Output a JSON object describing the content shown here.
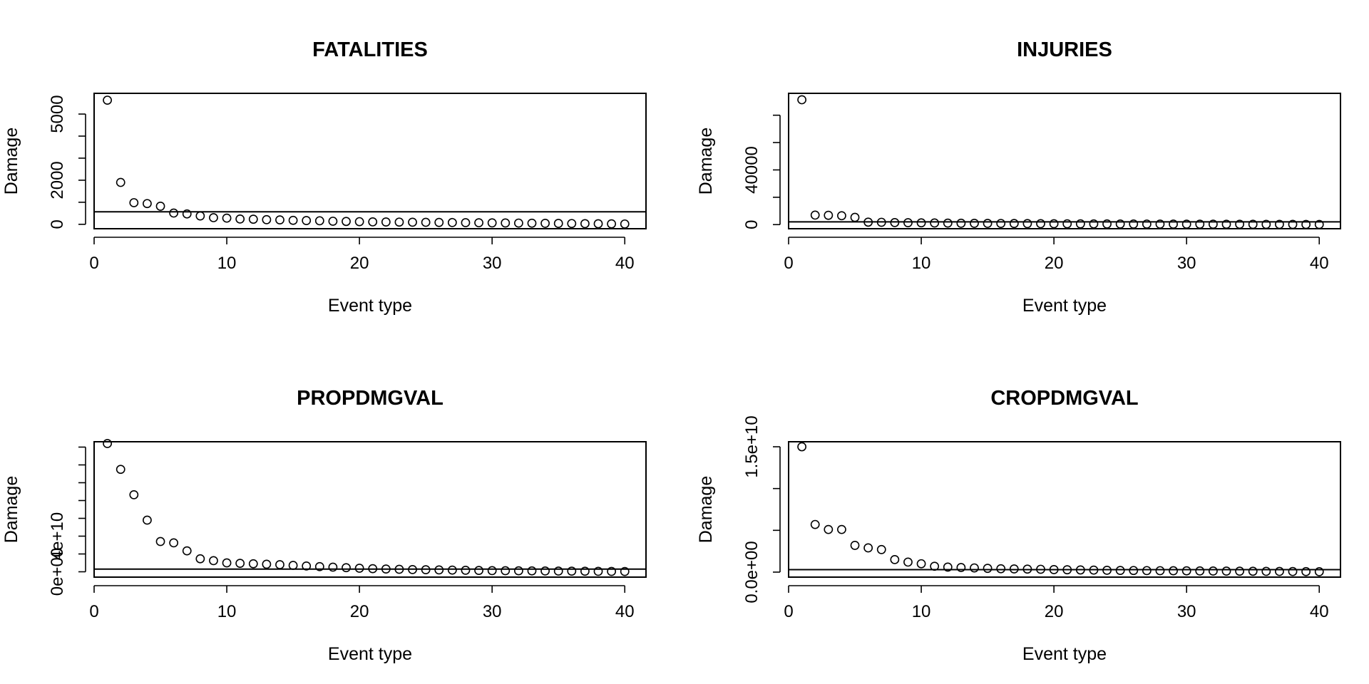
{
  "chart_data": [
    {
      "type": "scatter",
      "title": "FATALITIES",
      "xlabel": "Event type",
      "ylabel": "Damage",
      "xlim": [
        0,
        41.6
      ],
      "ylim": [
        -200,
        5940
      ],
      "xticks": [
        0,
        10,
        20,
        30,
        40
      ],
      "xtick_labels": [
        "0",
        "10",
        "20",
        "30",
        "40"
      ],
      "yticks": [
        0,
        1000,
        2000,
        3000,
        4000,
        5000
      ],
      "ytick_labels": [
        "0",
        "",
        "2000",
        "",
        "",
        "5000"
      ],
      "hline": 566,
      "x": [
        1,
        2,
        3,
        4,
        5,
        6,
        7,
        8,
        9,
        10,
        11,
        12,
        13,
        14,
        15,
        16,
        17,
        18,
        19,
        20,
        21,
        22,
        23,
        24,
        25,
        26,
        27,
        28,
        29,
        30,
        31,
        32,
        33,
        34,
        35,
        36,
        37,
        38,
        39,
        40
      ],
      "values": [
        5630,
        1900,
        980,
        940,
        820,
        510,
        470,
        380,
        300,
        280,
        240,
        230,
        210,
        200,
        180,
        170,
        160,
        140,
        130,
        120,
        110,
        105,
        100,
        95,
        90,
        85,
        80,
        75,
        70,
        65,
        60,
        55,
        50,
        45,
        40,
        35,
        30,
        25,
        20,
        15
      ]
    },
    {
      "type": "scatter",
      "title": "INJURIES",
      "xlabel": "Event type",
      "ylabel": "Damage",
      "xlim": [
        0,
        41.6
      ],
      "ylim": [
        -3000,
        96000
      ],
      "xticks": [
        0,
        10,
        20,
        30,
        40
      ],
      "xtick_labels": [
        "0",
        "10",
        "20",
        "30",
        "40"
      ],
      "yticks": [
        0,
        20000,
        40000,
        60000,
        80000
      ],
      "ytick_labels": [
        "0",
        "",
        "40000",
        "",
        ""
      ],
      "hline": 2000,
      "x": [
        1,
        2,
        3,
        4,
        5,
        6,
        7,
        8,
        9,
        10,
        11,
        12,
        13,
        14,
        15,
        16,
        17,
        18,
        19,
        20,
        21,
        22,
        23,
        24,
        25,
        26,
        27,
        28,
        29,
        30,
        31,
        32,
        33,
        34,
        35,
        36,
        37,
        38,
        39,
        40
      ],
      "values": [
        91300,
        6950,
        6800,
        6500,
        5300,
        1800,
        1700,
        1500,
        1400,
        1300,
        1200,
        1100,
        1000,
        950,
        900,
        850,
        800,
        750,
        700,
        650,
        600,
        550,
        500,
        480,
        450,
        420,
        400,
        380,
        350,
        320,
        300,
        280,
        260,
        240,
        220,
        200,
        180,
        160,
        140,
        120
      ]
    },
    {
      "type": "scatter",
      "title": "PROPDMGVAL",
      "xlabel": "Event type",
      "ylabel": "Damage",
      "xlim": [
        0,
        41.6
      ],
      "ylim": [
        -6000000000,
        146000000000
      ],
      "xticks": [
        0,
        10,
        20,
        30,
        40
      ],
      "xtick_labels": [
        "0",
        "10",
        "20",
        "30",
        "40"
      ],
      "yticks": [
        0,
        20000000000,
        40000000000,
        60000000000,
        80000000000,
        100000000000,
        120000000000,
        140000000000
      ],
      "ytick_labels": [
        "0e+00",
        "",
        "4e+10",
        "",
        "",
        "",
        "",
        ""
      ],
      "hline": 3000000000,
      "x": [
        1,
        2,
        3,
        4,
        5,
        6,
        7,
        8,
        9,
        10,
        11,
        12,
        13,
        14,
        15,
        16,
        17,
        18,
        19,
        20,
        21,
        22,
        23,
        24,
        25,
        26,
        27,
        28,
        29,
        30,
        31,
        32,
        33,
        34,
        35,
        36,
        37,
        38,
        39,
        40
      ],
      "values": [
        144000000000,
        115000000000,
        86500000000,
        58000000000,
        34000000000,
        32500000000,
        23500000000,
        14600000000,
        12500000000,
        10000000000,
        9500000000,
        9000000000,
        8500000000,
        8000000000,
        7200000000,
        6500000000,
        5800000000,
        5200000000,
        4600000000,
        4000000000,
        3500000000,
        3100000000,
        2800000000,
        2500000000,
        2300000000,
        2100000000,
        1900000000,
        1700000000,
        1500000000,
        1300000000,
        1200000000,
        1100000000,
        1000000000,
        900000000,
        800000000,
        700000000,
        600000000,
        500000000,
        400000000,
        300000000
      ]
    },
    {
      "type": "scatter",
      "title": "CROPDMGVAL",
      "xlabel": "Event type",
      "ylabel": "Damage",
      "xlim": [
        0,
        41.6
      ],
      "ylim": [
        -600000000,
        15600000000
      ],
      "xticks": [
        0,
        10,
        20,
        30,
        40
      ],
      "xtick_labels": [
        "0",
        "10",
        "20",
        "30",
        "40"
      ],
      "yticks": [
        0,
        5000000000,
        10000000000,
        15000000000
      ],
      "ytick_labels": [
        "0.0e+00",
        "",
        "",
        "1.5e+10"
      ],
      "hline": 300000000,
      "x": [
        1,
        2,
        3,
        4,
        5,
        6,
        7,
        8,
        9,
        10,
        11,
        12,
        13,
        14,
        15,
        16,
        17,
        18,
        19,
        20,
        21,
        22,
        23,
        24,
        25,
        26,
        27,
        28,
        29,
        30,
        31,
        32,
        33,
        34,
        35,
        36,
        37,
        38,
        39,
        40
      ],
      "values": [
        15000000000,
        5700000000,
        5100000000,
        5100000000,
        3200000000,
        2900000000,
        2700000000,
        1500000000,
        1200000000,
        1000000000,
        700000000,
        600000000,
        550000000,
        500000000,
        450000000,
        400000000,
        380000000,
        360000000,
        340000000,
        300000000,
        280000000,
        260000000,
        240000000,
        220000000,
        200000000,
        190000000,
        180000000,
        170000000,
        160000000,
        150000000,
        140000000,
        130000000,
        120000000,
        110000000,
        100000000,
        90000000,
        80000000,
        70000000,
        60000000,
        50000000
      ]
    }
  ]
}
